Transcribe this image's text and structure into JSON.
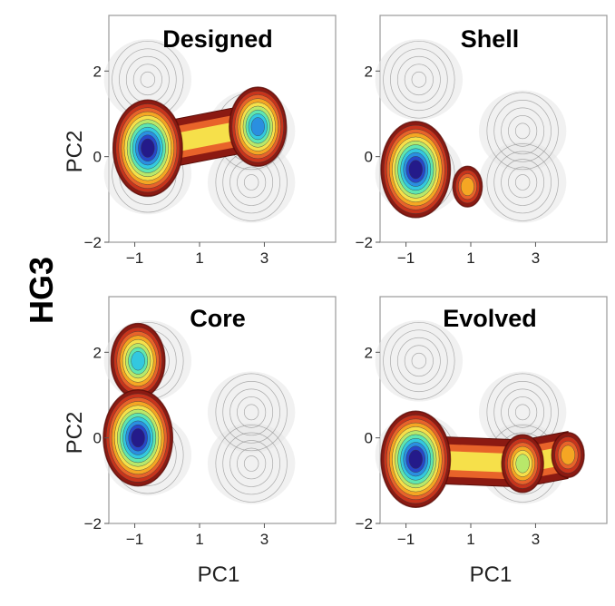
{
  "figure": {
    "row_label": "HG3",
    "xlabel": "PC1",
    "ylabel": "PC2"
  },
  "chart_data": [
    {
      "type": "contour",
      "title": "Designed",
      "xlabel": "",
      "ylabel": "PC2",
      "xticks": [
        -1,
        1,
        3
      ],
      "yticks": [
        -2,
        0,
        2
      ],
      "xlim": [
        -1.8,
        5.2
      ],
      "ylim": [
        -2.0,
        3.3
      ],
      "background_peaks": [
        [
          -0.6,
          1.8
        ],
        [
          -0.6,
          -0.4
        ],
        [
          2.6,
          0.6
        ],
        [
          2.6,
          -0.6
        ]
      ],
      "highlight_peaks": [
        {
          "x": -0.6,
          "y": 0.2,
          "weight": 1.0
        },
        {
          "x": 2.8,
          "y": 0.7,
          "weight": 0.8
        }
      ],
      "bridge": true
    },
    {
      "type": "contour",
      "title": "Shell",
      "xlabel": "",
      "ylabel": "",
      "xticks": [
        -1,
        1,
        3
      ],
      "yticks": [
        -2,
        0,
        2
      ],
      "xlim": [
        -1.8,
        5.2
      ],
      "ylim": [
        -2.0,
        3.3
      ],
      "background_peaks": [
        [
          -0.6,
          1.8
        ],
        [
          -0.6,
          -0.4
        ],
        [
          2.6,
          0.6
        ],
        [
          2.6,
          -0.6
        ]
      ],
      "highlight_peaks": [
        {
          "x": -0.7,
          "y": -0.3,
          "weight": 1.0
        },
        {
          "x": 0.9,
          "y": -0.7,
          "weight": 0.35
        }
      ],
      "bridge": false
    },
    {
      "type": "contour",
      "title": "Core",
      "xlabel": "PC1",
      "ylabel": "PC2",
      "xticks": [
        -1,
        1,
        3
      ],
      "yticks": [
        -2,
        0,
        2
      ],
      "xlim": [
        -1.8,
        5.2
      ],
      "ylim": [
        -2.0,
        3.3
      ],
      "background_peaks": [
        [
          -0.6,
          1.8
        ],
        [
          -0.6,
          -0.4
        ],
        [
          2.6,
          0.6
        ],
        [
          2.6,
          -0.6
        ]
      ],
      "highlight_peaks": [
        {
          "x": -0.9,
          "y": 1.8,
          "weight": 0.75
        },
        {
          "x": -0.9,
          "y": 0.0,
          "weight": 1.0
        }
      ],
      "bridge": false
    },
    {
      "type": "contour",
      "title": "Evolved",
      "xlabel": "PC1",
      "ylabel": "",
      "xticks": [
        -1,
        1,
        3
      ],
      "yticks": [
        -2,
        0,
        2
      ],
      "xlim": [
        -1.8,
        5.2
      ],
      "ylim": [
        -2.0,
        3.3
      ],
      "background_peaks": [
        [
          -0.6,
          1.8
        ],
        [
          -0.6,
          -0.4
        ],
        [
          2.6,
          0.6
        ],
        [
          2.6,
          -0.6
        ]
      ],
      "highlight_peaks": [
        {
          "x": -0.7,
          "y": -0.5,
          "weight": 1.0
        },
        {
          "x": 2.6,
          "y": -0.6,
          "weight": 0.55
        },
        {
          "x": 4.0,
          "y": -0.4,
          "weight": 0.4
        }
      ],
      "bridge": true
    }
  ],
  "colors": {
    "background_contour": "#8c8c8c",
    "background_fill": "#e6e6e6",
    "frame": "#999999",
    "level_colors": [
      "#8b1a12",
      "#c8341c",
      "#e8632a",
      "#f5a623",
      "#f6e04a",
      "#b8e86a",
      "#5fe6b0",
      "#33c8e0",
      "#2a8fe0",
      "#2747c8",
      "#241a8a"
    ]
  }
}
